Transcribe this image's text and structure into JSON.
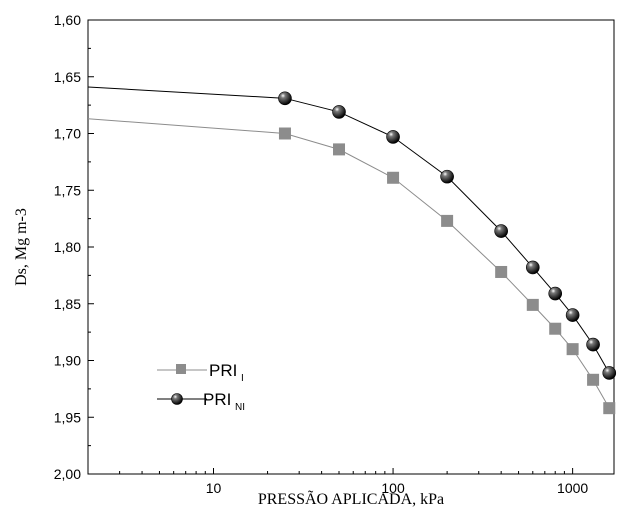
{
  "chart_data": {
    "type": "line",
    "xlabel": "PRESSÃO APLICADA, kPa",
    "ylabel": "Ds, Mg m-3",
    "x_scale": "log",
    "xlim": [
      2,
      1700
    ],
    "ylim": [
      1.6,
      2.0
    ],
    "y_inverted": true,
    "x_ticks": [
      10,
      100,
      1000
    ],
    "x_tick_labels": [
      "10",
      "100",
      "1000"
    ],
    "y_ticks": [
      1.6,
      1.65,
      1.7,
      1.75,
      1.8,
      1.85,
      1.9,
      1.95,
      2.0
    ],
    "y_tick_labels": [
      "1,60",
      "1,65",
      "1,70",
      "1,75",
      "1,80",
      "1,85",
      "1,90",
      "1,95",
      "2,00"
    ],
    "grid": false,
    "legend_position": "bottom-left",
    "series": [
      {
        "name": "PRI",
        "name_subscript": "I",
        "color": "#8c8c8c",
        "marker": "square",
        "line_start": [
          2,
          1.687
        ],
        "x": [
          25,
          50,
          100,
          200,
          400,
          600,
          800,
          1000,
          1300,
          1600
        ],
        "y": [
          1.7,
          1.714,
          1.739,
          1.777,
          1.822,
          1.851,
          1.872,
          1.89,
          1.917,
          1.942
        ]
      },
      {
        "name": "PRI",
        "name_subscript": "NI",
        "color": "#000000",
        "marker": "circle",
        "line_start": [
          2,
          1.659
        ],
        "x": [
          25,
          50,
          100,
          200,
          400,
          600,
          800,
          1000,
          1300,
          1600
        ],
        "y": [
          1.669,
          1.681,
          1.703,
          1.738,
          1.786,
          1.818,
          1.841,
          1.86,
          1.886,
          1.911
        ]
      }
    ]
  }
}
